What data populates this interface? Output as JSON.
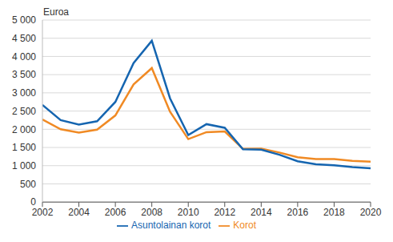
{
  "chart_data": {
    "type": "line",
    "y_label": "Euroa",
    "x": [
      2002,
      2003,
      2004,
      2005,
      2006,
      2007,
      2008,
      2009,
      2010,
      2011,
      2012,
      2013,
      2014,
      2015,
      2016,
      2017,
      2018,
      2019,
      2020
    ],
    "series": [
      {
        "name": "Korot",
        "color": "#f08a24",
        "values": [
          2270,
          2000,
          1910,
          1990,
          2380,
          3230,
          3680,
          2480,
          1730,
          1920,
          1940,
          1460,
          1470,
          1360,
          1230,
          1180,
          1180,
          1130,
          1110
        ]
      },
      {
        "name": "Asuntolainan korot",
        "color": "#1565b0",
        "values": [
          2670,
          2250,
          2130,
          2220,
          2750,
          3820,
          4430,
          2850,
          1840,
          2140,
          2040,
          1450,
          1440,
          1300,
          1120,
          1040,
          1010,
          960,
          930
        ]
      }
    ],
    "xlim": [
      2002,
      2020
    ],
    "xticks": [
      2002,
      2004,
      2006,
      2008,
      2010,
      2012,
      2014,
      2016,
      2018,
      2020
    ],
    "ylim": [
      0,
      5000
    ],
    "yticks": [
      0,
      500,
      {
        "value": 1000,
        "label": "1 000"
      },
      {
        "value": 1500,
        "label": "1 500"
      },
      {
        "value": 2000,
        "label": "2 000"
      },
      {
        "value": 2500,
        "label": "2 500"
      },
      {
        "value": 3000,
        "label": "3 000"
      },
      {
        "value": 3500,
        "label": "3 500"
      },
      {
        "value": 4000,
        "label": "4 000"
      },
      {
        "value": 4500,
        "label": "4 500"
      },
      {
        "value": 5000,
        "label": "5 000"
      }
    ],
    "grid": true,
    "legend": "bottom"
  }
}
